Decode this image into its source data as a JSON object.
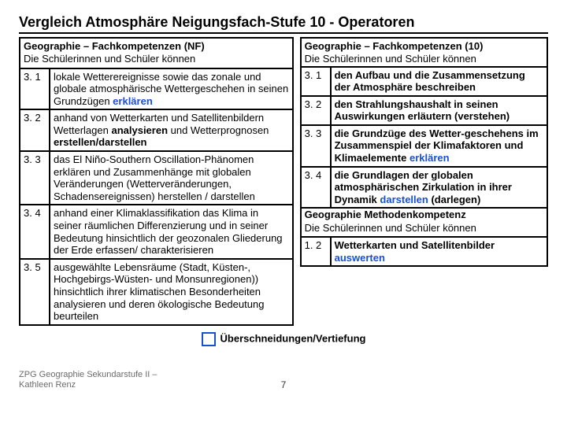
{
  "page_title": "Vergleich Atmosphäre  Neigungsfach-Stufe 10 - Operatoren",
  "left": {
    "heading_title": "Geographie – Fachkompetenzen (NF)",
    "heading_sub": "Die Schülerinnen und Schüler können",
    "rows": [
      {
        "num": "3. 1",
        "pre": "lokale Wetterereignisse sowie das zonale und globale atmosphärische Wettergeschehen in seinen Grundzügen ",
        "op": "erklären",
        "post": ""
      },
      {
        "num": "3. 2",
        "pre": "anhand von Wetterkarten und Satellitenbildern Wetterlagen ",
        "op": "analysieren",
        "mid": " und Wetterprognosen ",
        "op2": "erstellen/darstellen",
        "post": ""
      },
      {
        "num": "3. 3",
        "pre": "das El Niño-Southern Oscillation-Phänomen erklären und Zusammenhänge mit globalen Veränderungen (Wetterveränderungen, Schadensereignissen) herstellen / darstellen",
        "op": "",
        "post": ""
      },
      {
        "num": "3. 4",
        "pre": "anhand einer Klimaklassifikation das Klima in seiner räumlichen Differenzierung und in seiner Bedeutung hinsichtlich der geozonalen Gliederung der Erde erfassen/ charakterisieren",
        "op": "",
        "post": ""
      },
      {
        "num": "3. 5",
        "pre": "ausgewählte Lebensräume (Stadt, Küsten-, Hochgebirgs-Wüsten- und Monsunregionen)) hinsichtlich ihrer klimatischen Besonderheiten analysieren und deren ökologische Bedeutung beurteilen",
        "op": "",
        "post": ""
      }
    ]
  },
  "right": {
    "heading_title": "Geographie – Fachkompetenzen (10)",
    "heading_sub": "Die Schülerinnen und Schüler können",
    "rows": [
      {
        "num": "3. 1",
        "pre": "den Aufbau und die Zusammensetzung der Atmosphäre beschreiben",
        "op": ""
      },
      {
        "num": "3. 2",
        "pre": "den Strahlungshaushalt in seinen Auswirkungen erläutern (verstehen)",
        "op": ""
      },
      {
        "num": "3. 3",
        "pre": "die Grundzüge des Wetter-geschehens im Zusammenspiel der Klimafaktoren und Klimaelemente ",
        "op": "erklären"
      },
      {
        "num": "3. 4",
        "pre": "die Grundlagen der globalen atmosphärischen Zirkulation in ihrer Dynamik ",
        "op": "darstellen",
        "post": " (darlegen)"
      }
    ],
    "mk_title": "Geographie Methodenkompetenz",
    "mk_sub": "Die Schülerinnen und Schüler können",
    "mk_rows": [
      {
        "num": "1. 2",
        "pre": "Wetterkarten und Satellitenbilder ",
        "op": "auswerten"
      }
    ]
  },
  "legend_label": "Überschneidungen/Vertiefung",
  "footer_credit": "ZPG Geographie Sekundarstufe II – Kathleen Renz",
  "page_number": "7",
  "colors": {
    "operator": "#1a4fd0",
    "border": "#000000",
    "footer": "#6b6b6b"
  }
}
